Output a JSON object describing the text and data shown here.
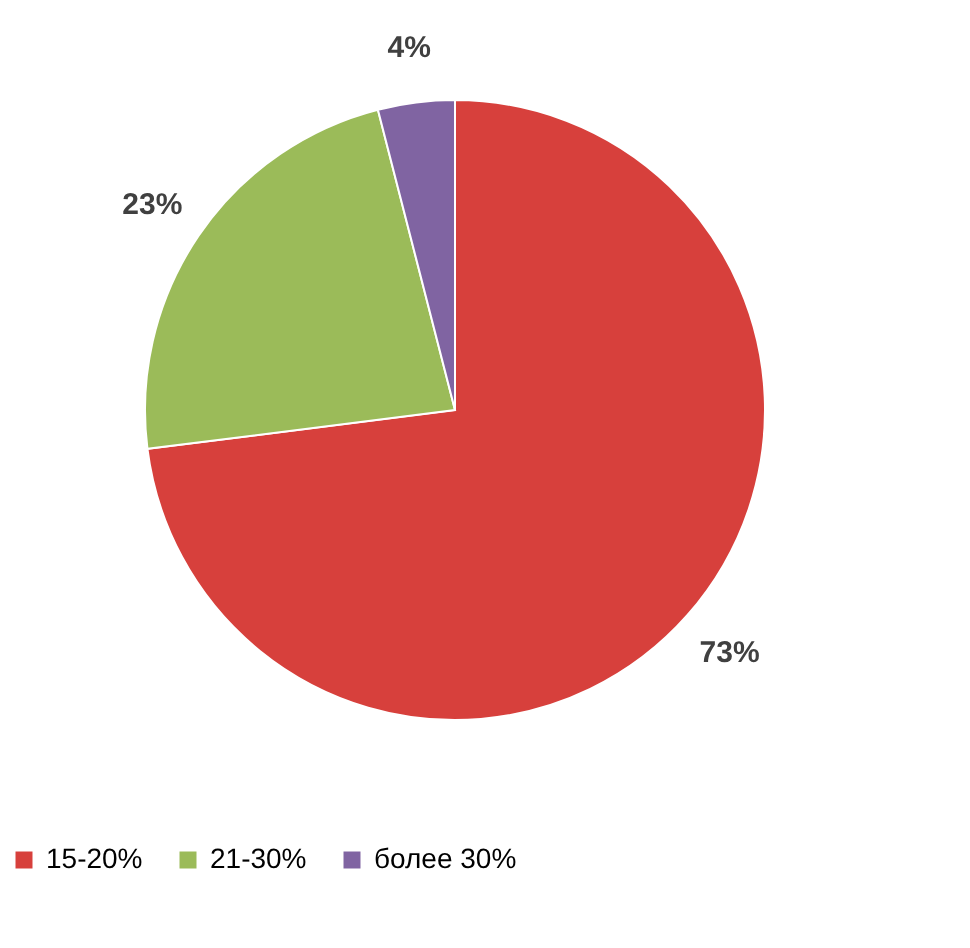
{
  "chart_data": {
    "type": "pie",
    "categories": [
      "15-20%",
      "21-30%",
      "более 30%"
    ],
    "values": [
      73,
      23,
      4
    ],
    "colors": [
      "#d7403c",
      "#9bbb59",
      "#8064a2"
    ],
    "value_labels": [
      "73%",
      "23%",
      "4%"
    ],
    "legend": "bottom"
  }
}
